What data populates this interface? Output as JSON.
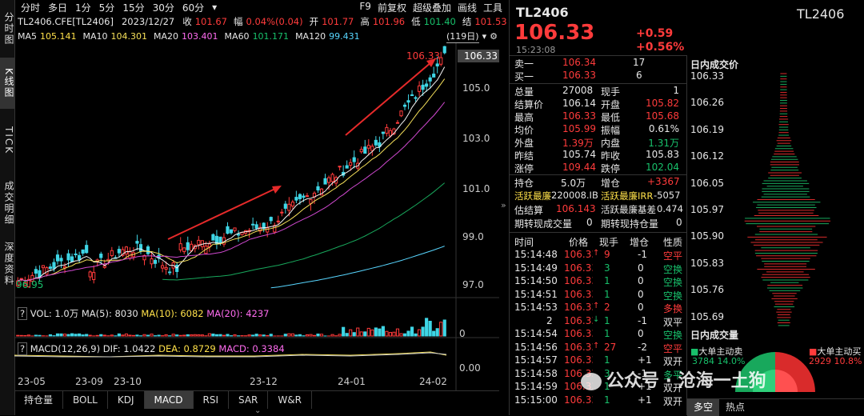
{
  "symbol": "TL2406",
  "left_tabs": [
    {
      "label": "分时图",
      "active": false
    },
    {
      "label": "K线图",
      "active": true
    },
    {
      "label": "TICK",
      "active": false
    },
    {
      "label": "成交明细",
      "active": false
    },
    {
      "label": "深度资料",
      "active": false
    }
  ],
  "toolbar": {
    "periods": [
      "分时",
      "多日",
      "1分",
      "5分",
      "15分",
      "30分",
      "60分"
    ],
    "dropdown_glyph": "▾",
    "right": [
      "F9",
      "前复权",
      "超级叠加",
      "画线",
      "工具"
    ]
  },
  "info": {
    "code": "TL2406.CFE[TL2406]",
    "date": "2023/12/27",
    "close_label": "收",
    "close": "101.67",
    "change_label": "幅",
    "change": "0.04%(0.04)",
    "open_label": "开",
    "open": "101.77",
    "high_label": "高",
    "high": "101.96",
    "low_label": "低",
    "low": "101.40",
    "settle_label": "结",
    "settle": "101.53"
  },
  "ma": {
    "ma5": "MA5",
    "ma5_v": "105.141",
    "ma10": "MA10",
    "ma10_v": "104.301",
    "ma20": "MA20",
    "ma20_v": "103.401",
    "ma60": "MA60",
    "ma60_v": "101.171",
    "ma120": "MA120",
    "ma120_v": "99.431",
    "days": "(119日)"
  },
  "price_axis": [
    "105.0",
    "103.0",
    "101.0",
    "99.0",
    "97.0"
  ],
  "last_price_tag": "106.33",
  "high_label": "106.33",
  "low_label": "96.95",
  "vol": {
    "q": "?",
    "text": "VOL: 1.0万",
    "ma5": "MA(5): 8030",
    "ma10": "MA(10): 6082",
    "ma20": "MA(20): 4237",
    "axis": "0"
  },
  "macd": {
    "q": "?",
    "text": "MACD(12,26,9)",
    "dif": "DIF: 1.0422",
    "dea": "DEA: 0.8729",
    "macd": "MACD: 0.3384",
    "axis": "0.00"
  },
  "x_axis": [
    "23-05",
    "23-09",
    "23-10",
    "23-12",
    "24-01",
    "24-02"
  ],
  "bottom_tabs": [
    "持仓量",
    "BOLL",
    "KDJ",
    "MACD",
    "RSI",
    "SAR",
    "W&R"
  ],
  "bottom_active": "MACD",
  "quote": {
    "name": "TL2406",
    "price": "106.33",
    "chg": "+0.59",
    "chg_pct": "+0.56%",
    "time": "15:23:08",
    "sell1_label": "卖一",
    "sell1_price": "106.34",
    "sell1_vol": "17",
    "buy1_label": "买一",
    "buy1_price": "106.33",
    "buy1_vol": "6",
    "rows": [
      {
        "l1": "总量",
        "v1": "27008",
        "c1": "white",
        "l2": "现手",
        "v2": "1",
        "c2": "white"
      },
      {
        "l1": "结算价",
        "v1": "106.14",
        "c1": "white",
        "l2": "开盘",
        "v2": "105.82",
        "c2": "red"
      },
      {
        "l1": "最高",
        "v1": "106.33",
        "c1": "red",
        "l2": "最低",
        "v2": "105.68",
        "c2": "red"
      },
      {
        "l1": "均价",
        "v1": "105.99",
        "c1": "red",
        "l2": "振幅",
        "v2": "0.61%",
        "c2": "white"
      },
      {
        "l1": "外盘",
        "v1": "1.39万",
        "c1": "red",
        "l2": "内盘",
        "v2": "1.31万",
        "c2": "green"
      },
      {
        "l1": "昨结",
        "v1": "105.74",
        "c1": "white",
        "l2": "昨收",
        "v2": "105.83",
        "c2": "white"
      },
      {
        "l1": "涨停",
        "v1": "109.44",
        "c1": "red",
        "l2": "跌停",
        "v2": "102.04",
        "c2": "green"
      }
    ],
    "hold_label": "持仓",
    "hold": "5.0万",
    "inc_label": "增仓",
    "inc": "+3367",
    "active1_label": "活跃最廉",
    "active1_v": "220008.IB",
    "active2_label": "活跃最廉IRR",
    "active2_v": "-5057",
    "est_label": "估结算",
    "est_v": "106.143",
    "basis_label": "活跃最廉基差",
    "basis_v": "0.474",
    "spot_vol_label": "期转现成交量",
    "spot_vol": "0",
    "spot_hold_label": "期转现持仓量",
    "spot_hold": "0"
  },
  "trades": {
    "headers": [
      "时间",
      "价格",
      "现手",
      "增仓",
      "性质"
    ],
    "rows": [
      {
        "t": "15:14:48",
        "p": "106.33",
        "arrow": "↑",
        "v": "9",
        "d": "-1",
        "k": "空平",
        "kc": "red"
      },
      {
        "t": "15:14:49",
        "p": "106.33",
        "arrow": "",
        "v": "3",
        "d": "0",
        "k": "空换",
        "kc": "green"
      },
      {
        "t": "15:14:50",
        "p": "106.33",
        "arrow": "",
        "v": "1",
        "d": "0",
        "k": "空换",
        "kc": "green"
      },
      {
        "t": "15:14:51",
        "p": "106.33",
        "arrow": "",
        "v": "1",
        "d": "0",
        "k": "空换",
        "kc": "green"
      },
      {
        "t": "15:14:53",
        "p": "106.33",
        "arrow": "↑",
        "v": "2",
        "d": "0",
        "k": "多换",
        "kc": "red"
      },
      {
        "t": "2",
        "p": "106.33",
        "arrow": "↓",
        "v": "1",
        "d": "-1",
        "k": "双平",
        "kc": "white"
      },
      {
        "t": "15:14:54",
        "p": "106.33",
        "arrow": "",
        "v": "1",
        "d": "0",
        "k": "空换",
        "kc": "green"
      },
      {
        "t": "15:14:56",
        "p": "106.33",
        "arrow": "↑",
        "v": "27",
        "d": "-2",
        "k": "空平",
        "kc": "red"
      },
      {
        "t": "15:14:57",
        "p": "106.33",
        "arrow": "",
        "v": "1",
        "d": "+1",
        "k": "双开",
        "kc": "white"
      },
      {
        "t": "15:14:58",
        "p": "106.33",
        "arrow": "",
        "v": "3",
        "d": "-1",
        "k": "多平",
        "kc": "green"
      },
      {
        "t": "15:14:59",
        "p": "106.33",
        "arrow": "",
        "v": "1",
        "d": "+1",
        "k": "双开",
        "kc": "white"
      },
      {
        "t": "15:15:00",
        "p": "106.33",
        "arrow": "",
        "v": "1",
        "d": "+1",
        "k": "双开",
        "kc": "white"
      }
    ]
  },
  "far_right": {
    "title": "TL2406",
    "dist_title": "日内成交价",
    "dist_axis": [
      "106.33",
      "106.26",
      "106.19",
      "106.12",
      "106.05",
      "105.97",
      "105.90",
      "105.83",
      "105.76",
      "105.69"
    ],
    "vol_title": "日内成交量",
    "big_sell_label": "大单主动卖",
    "big_sell": "3784",
    "big_sell_pct": "14.0%",
    "big_buy_label": "大单主动买",
    "big_buy": "2929",
    "big_buy_pct": "10.8%",
    "tabs": [
      "多空",
      "热点"
    ]
  },
  "watermark": "公众号 · 沧海一土狗"
}
